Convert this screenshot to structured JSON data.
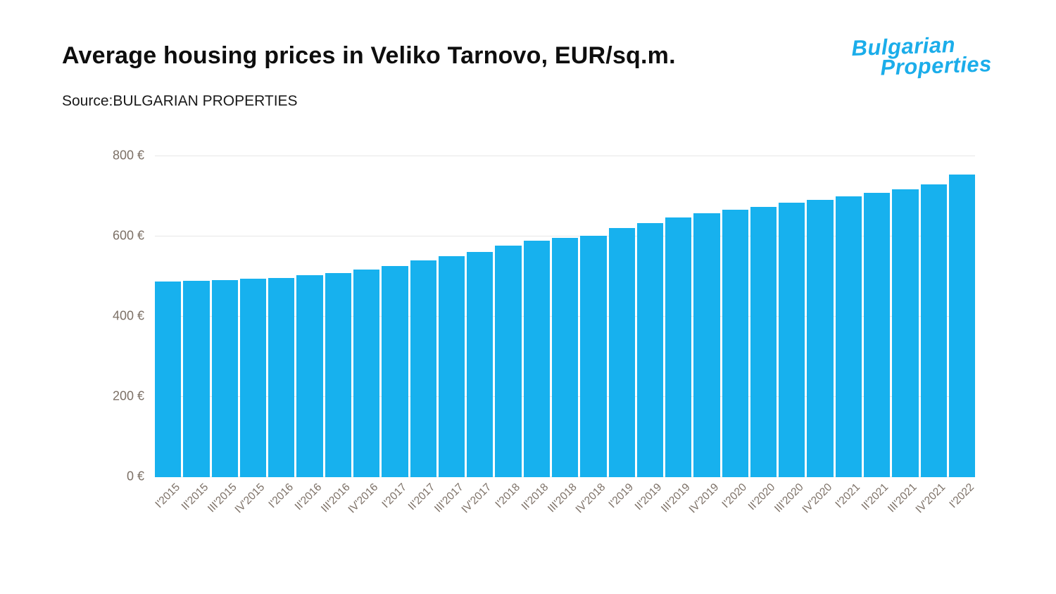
{
  "header": {
    "title": "Average housing prices in Veliko Tarnovo, EUR/sq.m.",
    "source": "Source:BULGARIAN PROPERTIES",
    "logo_line1": "Bulgarian",
    "logo_line2": "Properties"
  },
  "colors": {
    "bar": "#17b1ee",
    "logo": "#1badea",
    "axis_text": "#7c7066",
    "gridline": "#e7e7e7",
    "background": "#ffffff"
  },
  "chart_data": {
    "type": "bar",
    "title": "Average housing prices in Veliko Tarnovo, EUR/sq.m.",
    "xlabel": "",
    "ylabel": "",
    "ylim": [
      0,
      800
    ],
    "yticks": [
      0,
      200,
      400,
      600,
      800
    ],
    "ytick_labels": [
      "0 €",
      "200 €",
      "400 €",
      "600 €",
      "800 €"
    ],
    "grid": true,
    "legend": false,
    "categories": [
      "I'2015",
      "II'2015",
      "III'2015",
      "IV'2015",
      "I'2016",
      "II'2016",
      "III'2016",
      "IV'2016",
      "I'2017",
      "II'2017",
      "III'2017",
      "IV'2017",
      "I'2018",
      "II'2018",
      "III'2018",
      "IV'2018",
      "I'2019",
      "II'2019",
      "III'2019",
      "IV'2019",
      "I'2020",
      "II'2020",
      "III'2020",
      "IV'2020",
      "I'2021",
      "II'2021",
      "III'2021",
      "IV'2021",
      "I'2022"
    ],
    "values": [
      487,
      490,
      492,
      494,
      497,
      503,
      508,
      517,
      527,
      540,
      551,
      562,
      577,
      590,
      596,
      601,
      621,
      633,
      647,
      658,
      666,
      674,
      684,
      691,
      700,
      709,
      717,
      729,
      755
    ]
  }
}
